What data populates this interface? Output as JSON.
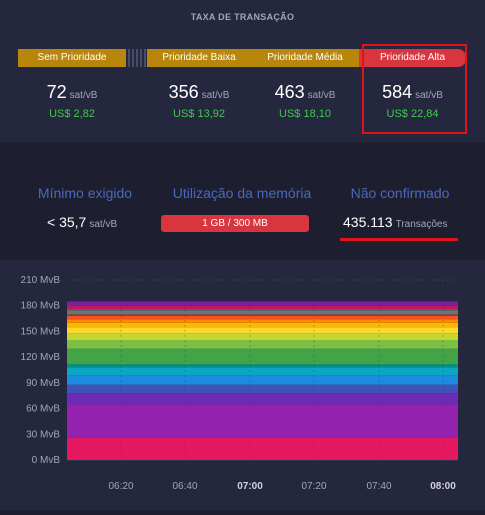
{
  "fees": {
    "title": "TAXA DE TRANSAÇÃO",
    "tiers": [
      {
        "label": "Sem Prioridade",
        "value": "72",
        "unit": "sat/vB",
        "usd": "US$ 2,82"
      },
      {
        "label": "Prioridade Baixa",
        "value": "356",
        "unit": "sat/vB",
        "usd": "US$ 13,92"
      },
      {
        "label": "Prioridade Média",
        "value": "463",
        "unit": "sat/vB",
        "usd": "US$ 18,10"
      },
      {
        "label": "Prioridade Alta",
        "value": "584",
        "unit": "sat/vB",
        "usd": "US$ 22,84"
      }
    ]
  },
  "mempool": {
    "min_fee": {
      "title": "Mínimo exigido",
      "value": "< 35,7",
      "unit": "sat/vB"
    },
    "memory": {
      "title": "Utilização da memória",
      "value": "1 GB / 300 MB"
    },
    "unconfirmed": {
      "title": "Não confirmado",
      "value": "435.113",
      "unit": "Transações"
    }
  },
  "colors": {
    "panel": "#24273e",
    "background": "#1d1f31",
    "accent_gold": "#b8860b",
    "accent_red": "#d8353f",
    "usd_green": "#3bcc49",
    "title_blue": "#4a68b9",
    "annotation_red": "#e0121a"
  },
  "chart_data": {
    "type": "area",
    "ylim": [
      0,
      210
    ],
    "y_ticks": [
      "0 MvB",
      "30 MvB",
      "60 MvB",
      "90 MvB",
      "120 MvB",
      "150 MvB",
      "180 MvB",
      "210 MvB"
    ],
    "x_ticks": [
      {
        "label": "06:20",
        "bold": false
      },
      {
        "label": "06:40",
        "bold": false
      },
      {
        "label": "07:00",
        "bold": true
      },
      {
        "label": "07:20",
        "bold": false
      },
      {
        "label": "07:40",
        "bold": false
      },
      {
        "label": "08:00",
        "bold": true
      }
    ],
    "grid": true,
    "stacked_bands": [
      {
        "color": "#e4185f",
        "from": 0,
        "to": 26
      },
      {
        "color": "#9323ae",
        "from": 26,
        "to": 65
      },
      {
        "color": "#6b2bb5",
        "from": 65,
        "to": 78
      },
      {
        "color": "#4251b5",
        "from": 78,
        "to": 88
      },
      {
        "color": "#1b8bdf",
        "from": 88,
        "to": 99
      },
      {
        "color": "#0aa6c4",
        "from": 99,
        "to": 108
      },
      {
        "color": "#078f7e",
        "from": 108,
        "to": 112
      },
      {
        "color": "#43a447",
        "from": 112,
        "to": 130
      },
      {
        "color": "#7bbf43",
        "from": 130,
        "to": 140
      },
      {
        "color": "#c4d62f",
        "from": 140,
        "to": 148
      },
      {
        "color": "#fdd92f",
        "from": 148,
        "to": 155
      },
      {
        "color": "#fcb800",
        "from": 155,
        "to": 160
      },
      {
        "color": "#fb8c00",
        "from": 160,
        "to": 164
      },
      {
        "color": "#f4511e",
        "from": 164,
        "to": 168
      },
      {
        "color": "#6d4c41",
        "from": 168,
        "to": 170
      },
      {
        "color": "#8d6e63",
        "from": 170,
        "to": 172
      },
      {
        "color": "#757575",
        "from": 172,
        "to": 174
      },
      {
        "color": "#546e7a",
        "from": 174,
        "to": 176
      },
      {
        "color": "#c2185b",
        "from": 176,
        "to": 180
      },
      {
        "color": "#7b1fa2",
        "from": 180,
        "to": 185
      }
    ]
  }
}
